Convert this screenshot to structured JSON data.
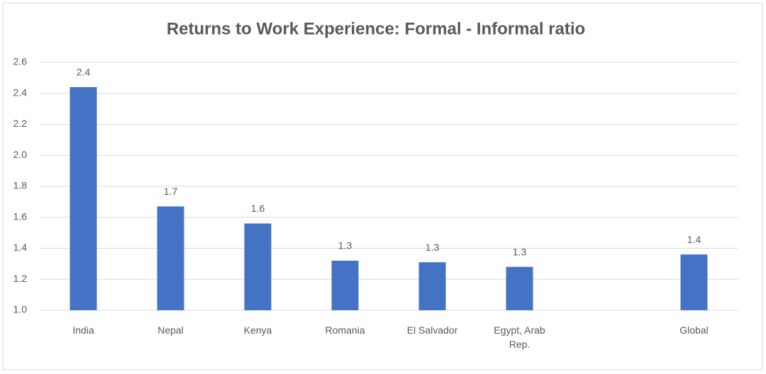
{
  "chart_data": {
    "type": "bar",
    "title": "Returns to Work Experience: Formal - Informal ratio",
    "categories": [
      "India",
      "Nepal",
      "Kenya",
      "Romania",
      "El Salvador",
      "Egypt, Arab Rep.",
      null,
      "Global"
    ],
    "values": [
      2.44,
      1.67,
      1.56,
      1.32,
      1.31,
      1.28,
      null,
      1.36
    ],
    "value_labels": [
      "2.4",
      "1.7",
      "1.6",
      "1.3",
      "1.3",
      "1.3",
      null,
      "1.4"
    ],
    "color": "#4472c4",
    "ylim": [
      1.0,
      2.6
    ],
    "yticks": [
      {
        "value": 1.0,
        "label": "1.0"
      },
      1.2,
      1.4,
      1.6,
      1.8,
      {
        "value": 2.0,
        "label": "2.0"
      },
      2.2,
      2.4,
      2.6
    ],
    "grid": true
  }
}
